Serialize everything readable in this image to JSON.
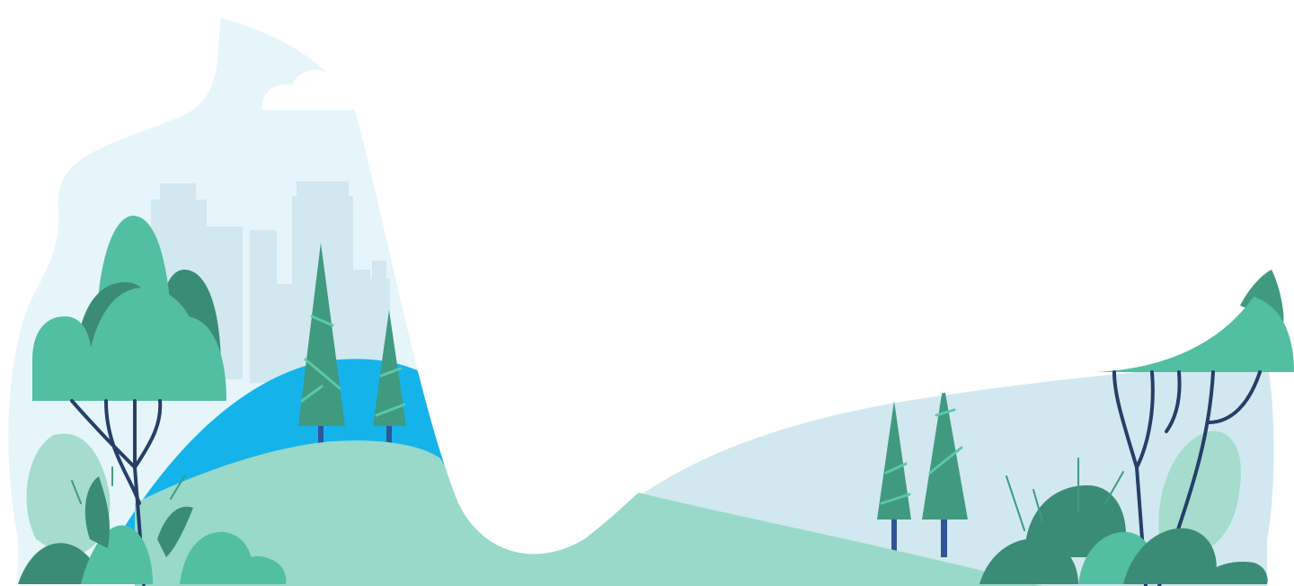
{
  "palette": {
    "sky": "#e5f5fa",
    "city": "#d1e8f0",
    "river": "#14b4ea",
    "meadow": "#98d9ca",
    "leaf_light": "#52bea2",
    "leaf_mid": "#3f9a80",
    "leaf_dark": "#3b8c76",
    "leaf_pale": "#a5dccd",
    "trunk": "#253f68",
    "trunk_blue": "#2f5598",
    "stripe": "#5ac9a9",
    "background": "#ffffff"
  },
  "icons": [
    "cloud-icon",
    "skyline-icon",
    "pine-tree-icon",
    "round-tree-icon",
    "fern-bush-icon",
    "slender-tree-icon"
  ]
}
